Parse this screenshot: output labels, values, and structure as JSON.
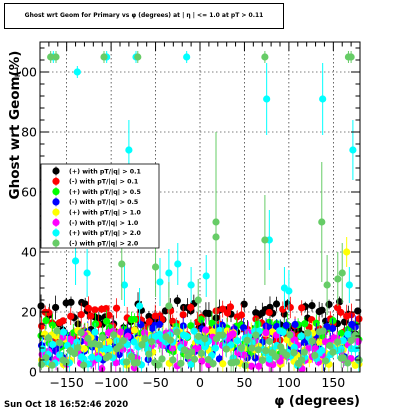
{
  "chart_data": {
    "type": "scatter",
    "title": "Ghost wrt Geom for Primary vs φ (degrees) at | η | <= 1.0 at pT > 0.11",
    "xlabel": "φ (degrees)",
    "ylabel": "Ghost wrt Geom(%)",
    "xlim": [
      -180,
      180
    ],
    "ylim": [
      0,
      110
    ],
    "x_ticks": [
      -150,
      -100,
      -50,
      0,
      50,
      100,
      150
    ],
    "y_ticks": [
      0,
      20,
      40,
      60,
      80,
      100
    ],
    "grid": true,
    "legend_position": "left-middle",
    "series": [
      {
        "name": "(+) with pT/|q| > 0.1",
        "color": "#000000",
        "base_range": [
          12,
          24
        ],
        "highlights": []
      },
      {
        "name": "(-) with pT/|q| > 0.1",
        "color": "#ff0000",
        "base_range": [
          10,
          22
        ],
        "highlights": []
      },
      {
        "name": "(+) with pT/|q| > 0.5",
        "color": "#00ff00",
        "base_range": [
          6,
          18
        ],
        "highlights": []
      },
      {
        "name": "(-) with pT/|q| > 0.5",
        "color": "#0000ff",
        "base_range": [
          4,
          16
        ],
        "highlights": []
      },
      {
        "name": "(+) with pT/|q| > 1.0",
        "color": "#ffff00",
        "base_range": [
          2,
          14
        ],
        "highlights": [
          {
            "x": 165,
            "y": 40,
            "err": 5
          }
        ]
      },
      {
        "name": "(-) with pT/|q| > 1.0",
        "color": "#ff00ff",
        "base_range": [
          1,
          14
        ],
        "highlights": []
      },
      {
        "name": "(+) with pT/|q| > 2.0",
        "color": "#00ffff",
        "base_range": [
          2,
          14
        ],
        "highlights": [
          {
            "x": -165,
            "y": 105,
            "err": 2
          },
          {
            "x": -138,
            "y": 100,
            "err": 2
          },
          {
            "x": -105,
            "y": 105,
            "err": 2
          },
          {
            "x": -72,
            "y": 105,
            "err": 2
          },
          {
            "x": -15,
            "y": 105,
            "err": 2
          },
          {
            "x": -80,
            "y": 74,
            "err": 10
          },
          {
            "x": 75,
            "y": 91,
            "err": 12
          },
          {
            "x": 138,
            "y": 91,
            "err": 12
          },
          {
            "x": 172,
            "y": 74,
            "err": 10
          },
          {
            "x": -140,
            "y": 37,
            "err": 8
          },
          {
            "x": -127,
            "y": 33,
            "err": 8
          },
          {
            "x": -85,
            "y": 29,
            "err": 7
          },
          {
            "x": -68,
            "y": 22,
            "err": 6
          },
          {
            "x": -45,
            "y": 30,
            "err": 8
          },
          {
            "x": -35,
            "y": 33,
            "err": 8
          },
          {
            "x": -25,
            "y": 36,
            "err": 7
          },
          {
            "x": -10,
            "y": 29,
            "err": 6
          },
          {
            "x": 7,
            "y": 32,
            "err": 7
          },
          {
            "x": 78,
            "y": 44,
            "err": 10
          },
          {
            "x": 95,
            "y": 28,
            "err": 7
          },
          {
            "x": 100,
            "y": 27,
            "err": 7
          },
          {
            "x": 168,
            "y": 29,
            "err": 6
          }
        ]
      },
      {
        "name": "(-) with pT/|q| > 2.0",
        "color": "#66cc66",
        "base_range": [
          2,
          14
        ],
        "highlights": [
          {
            "x": -168,
            "y": 105,
            "err": 2
          },
          {
            "x": -162,
            "y": 105,
            "err": 2
          },
          {
            "x": -108,
            "y": 105,
            "err": 2
          },
          {
            "x": -70,
            "y": 105,
            "err": 2
          },
          {
            "x": 73,
            "y": 105,
            "err": 2
          },
          {
            "x": 167,
            "y": 105,
            "err": 2
          },
          {
            "x": 170,
            "y": 105,
            "err": 2
          },
          {
            "x": 18,
            "y": 50,
            "err": 20
          },
          {
            "x": 18,
            "y": 45,
            "err": 35
          },
          {
            "x": 73,
            "y": 44,
            "err": 15
          },
          {
            "x": 137,
            "y": 50,
            "err": 20
          },
          {
            "x": -88,
            "y": 36,
            "err": 12
          },
          {
            "x": -50,
            "y": 35,
            "err": 10
          },
          {
            "x": -35,
            "y": 22,
            "err": 8
          },
          {
            "x": 143,
            "y": 29,
            "err": 10
          },
          {
            "x": 155,
            "y": 31,
            "err": 9
          },
          {
            "x": 160,
            "y": 33,
            "err": 10
          },
          {
            "x": -2,
            "y": 24,
            "err": 7
          }
        ]
      }
    ],
    "legend_entries": [
      "(+) with pT/|q| > 0.1",
      "(-) with pT/|q| > 0.1",
      "(+) with pT/|q| > 0.5",
      "(-) with pT/|q| > 0.5",
      "(+) with pT/|q| > 1.0",
      "(-) with pT/|q| > 1.0",
      "(+) with pT/|q| > 2.0",
      "(-) with pT/|q| > 2.0"
    ]
  },
  "timestamp": "Sun Oct 18 16:52:46 2020"
}
